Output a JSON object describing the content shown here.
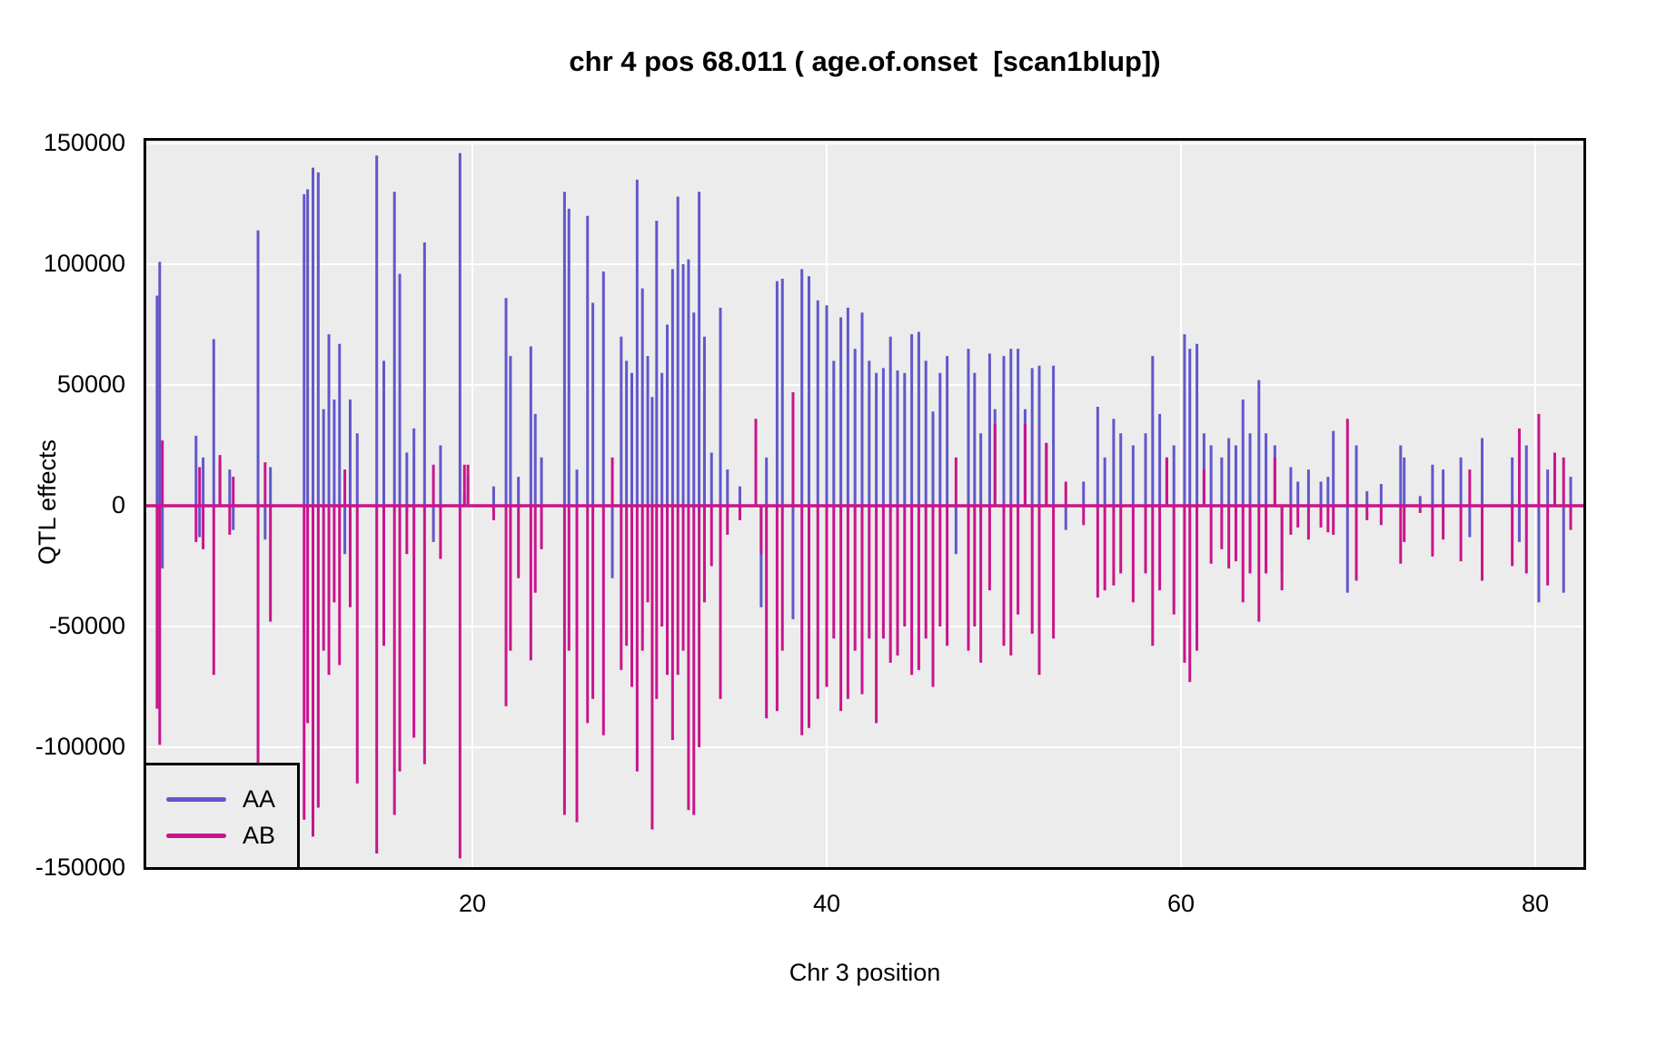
{
  "title": "chr 4 pos 68.011 ( age.of.onset  [scan1blup])",
  "panel": {
    "bg": "#ECECEC",
    "grid_color": "#FFFFFF",
    "border_color": "#000000"
  },
  "legend": {
    "position": "bottom-left",
    "entries": [
      {
        "label": "AA",
        "color": "#6257CB"
      },
      {
        "label": "AB",
        "color": "#C9148C"
      }
    ]
  },
  "chart_data": {
    "type": "line",
    "title": "chr 4 pos 68.011 ( age.of.onset  [scan1blup])",
    "xlabel": "Chr 3 position",
    "ylabel": "QTL effects",
    "xlim": [
      1.4,
      82.8
    ],
    "ylim": [
      -152000,
      151000
    ],
    "x_ticks": [
      20,
      40,
      60,
      80
    ],
    "y_ticks": [
      150000,
      100000,
      50000,
      0,
      -50000,
      -100000,
      -150000
    ],
    "grid": "white gridlines on gray panel",
    "legend_position": "bottom-left",
    "baseline": 0,
    "series": [
      {
        "name": "AA",
        "color": "#6257CB"
      },
      {
        "name": "AB",
        "color": "#C9148C"
      }
    ],
    "spikes": [
      [
        2.2,
        87000,
        -84000
      ],
      [
        2.35,
        101000,
        -99000
      ],
      [
        2.5,
        -26000,
        27000
      ],
      [
        4.4,
        29000,
        -15000
      ],
      [
        4.6,
        -13000,
        16000
      ],
      [
        4.8,
        20000,
        -18000
      ],
      [
        5.4,
        69000,
        -70000
      ],
      [
        5.75,
        18000,
        21000
      ],
      [
        6.3,
        15000,
        -12000
      ],
      [
        6.5,
        -10000,
        12000
      ],
      [
        7.9,
        114000,
        -110000
      ],
      [
        8.3,
        -14000,
        18000
      ],
      [
        8.6,
        16000,
        -48000
      ],
      [
        10.5,
        129000,
        -130000
      ],
      [
        10.7,
        131000,
        -90000
      ],
      [
        11.0,
        140000,
        -137000
      ],
      [
        11.3,
        138000,
        -125000
      ],
      [
        11.6,
        40000,
        -60000
      ],
      [
        11.9,
        71000,
        -70000
      ],
      [
        12.2,
        44000,
        -40000
      ],
      [
        12.5,
        67000,
        -66000
      ],
      [
        12.8,
        -20000,
        15000
      ],
      [
        13.1,
        44000,
        -42000
      ],
      [
        13.5,
        30000,
        -115000
      ],
      [
        14.6,
        145000,
        -144000
      ],
      [
        15.0,
        60000,
        -58000
      ],
      [
        15.6,
        130000,
        -128000
      ],
      [
        15.9,
        96000,
        -110000
      ],
      [
        16.3,
        22000,
        -20000
      ],
      [
        16.7,
        32000,
        -96000
      ],
      [
        17.3,
        109000,
        -107000
      ],
      [
        17.8,
        -15000,
        17000
      ],
      [
        18.2,
        25000,
        -22000
      ],
      [
        19.3,
        146000,
        -146000
      ],
      [
        19.55,
        5000,
        17000
      ],
      [
        19.75,
        12000,
        17000
      ],
      [
        21.2,
        8000,
        -6000
      ],
      [
        21.9,
        86000,
        -83000
      ],
      [
        22.15,
        62000,
        -60000
      ],
      [
        22.6,
        12000,
        -30000
      ],
      [
        23.3,
        66000,
        -64000
      ],
      [
        23.55,
        38000,
        -36000
      ],
      [
        23.9,
        20000,
        -18000
      ],
      [
        25.2,
        130000,
        -128000
      ],
      [
        25.45,
        123000,
        -60000
      ],
      [
        25.9,
        15000,
        -131000
      ],
      [
        26.5,
        120000,
        -90000
      ],
      [
        26.8,
        84000,
        -80000
      ],
      [
        27.4,
        97000,
        -95000
      ],
      [
        27.9,
        -30000,
        20000
      ],
      [
        28.4,
        70000,
        -68000
      ],
      [
        28.7,
        60000,
        -58000
      ],
      [
        29.0,
        55000,
        -75000
      ],
      [
        29.3,
        135000,
        -110000
      ],
      [
        29.6,
        90000,
        -60000
      ],
      [
        29.9,
        62000,
        -40000
      ],
      [
        30.15,
        45000,
        -134000
      ],
      [
        30.4,
        118000,
        -80000
      ],
      [
        30.7,
        55000,
        -50000
      ],
      [
        31.0,
        75000,
        -70000
      ],
      [
        31.3,
        98000,
        -97000
      ],
      [
        31.6,
        128000,
        -70000
      ],
      [
        31.9,
        100000,
        -60000
      ],
      [
        32.2,
        102000,
        -126000
      ],
      [
        32.5,
        80000,
        -128000
      ],
      [
        32.8,
        130000,
        -100000
      ],
      [
        33.1,
        70000,
        -40000
      ],
      [
        33.5,
        22000,
        -25000
      ],
      [
        34.0,
        82000,
        -80000
      ],
      [
        34.4,
        15000,
        -12000
      ],
      [
        35.1,
        8000,
        -6000
      ],
      [
        36.0,
        10000,
        36000
      ],
      [
        36.3,
        -42000,
        -20000
      ],
      [
        36.6,
        20000,
        -88000
      ],
      [
        37.2,
        93000,
        -85000
      ],
      [
        37.5,
        94000,
        -60000
      ],
      [
        38.1,
        -47000,
        47000
      ],
      [
        38.6,
        98000,
        -95000
      ],
      [
        39.0,
        95000,
        -92000
      ],
      [
        39.5,
        85000,
        -80000
      ],
      [
        40.0,
        83000,
        -75000
      ],
      [
        40.4,
        60000,
        -55000
      ],
      [
        40.8,
        78000,
        -85000
      ],
      [
        41.2,
        82000,
        -80000
      ],
      [
        41.6,
        65000,
        -60000
      ],
      [
        42.0,
        80000,
        -78000
      ],
      [
        42.4,
        60000,
        -55000
      ],
      [
        42.8,
        55000,
        -90000
      ],
      [
        43.2,
        57000,
        -55000
      ],
      [
        43.6,
        70000,
        -65000
      ],
      [
        44.0,
        56000,
        -62000
      ],
      [
        44.4,
        55000,
        -50000
      ],
      [
        44.8,
        71000,
        -70000
      ],
      [
        45.2,
        72000,
        -68000
      ],
      [
        45.6,
        60000,
        -55000
      ],
      [
        46.0,
        39000,
        -75000
      ],
      [
        46.4,
        55000,
        -50000
      ],
      [
        46.8,
        62000,
        -58000
      ],
      [
        47.3,
        -20000,
        20000
      ],
      [
        48.0,
        65000,
        -60000
      ],
      [
        48.35,
        55000,
        -50000
      ],
      [
        48.7,
        30000,
        -65000
      ],
      [
        49.2,
        63000,
        -35000
      ],
      [
        49.5,
        40000,
        34000
      ],
      [
        50.0,
        62000,
        -58000
      ],
      [
        50.4,
        65000,
        -62000
      ],
      [
        50.8,
        65000,
        -45000
      ],
      [
        51.2,
        40000,
        34000
      ],
      [
        51.6,
        57000,
        -53000
      ],
      [
        52.0,
        58000,
        -70000
      ],
      [
        52.4,
        26000,
        26000
      ],
      [
        52.8,
        58000,
        -55000
      ],
      [
        53.5,
        -10000,
        10000
      ],
      [
        54.5,
        10000,
        -8000
      ],
      [
        55.3,
        41000,
        -38000
      ],
      [
        55.7,
        20000,
        -35000
      ],
      [
        56.2,
        36000,
        -33000
      ],
      [
        56.6,
        30000,
        -28000
      ],
      [
        57.3,
        25000,
        -40000
      ],
      [
        58.0,
        30000,
        -28000
      ],
      [
        58.4,
        62000,
        -58000
      ],
      [
        58.8,
        38000,
        -35000
      ],
      [
        59.2,
        20000,
        20000
      ],
      [
        59.6,
        25000,
        -45000
      ],
      [
        60.2,
        71000,
        -65000
      ],
      [
        60.5,
        65000,
        -73000
      ],
      [
        60.9,
        67000,
        -60000
      ],
      [
        61.3,
        30000,
        15000
      ],
      [
        61.7,
        25000,
        -24000
      ],
      [
        62.3,
        20000,
        -18000
      ],
      [
        62.7,
        28000,
        -26000
      ],
      [
        63.1,
        25000,
        -23000
      ],
      [
        63.5,
        44000,
        -40000
      ],
      [
        63.9,
        30000,
        -28000
      ],
      [
        64.4,
        52000,
        -48000
      ],
      [
        64.8,
        30000,
        -28000
      ],
      [
        65.3,
        25000,
        20000
      ],
      [
        65.7,
        -27000,
        -35000
      ],
      [
        66.2,
        16000,
        -12000
      ],
      [
        66.6,
        10000,
        -9000
      ],
      [
        67.2,
        15000,
        -14000
      ],
      [
        67.9,
        10000,
        -9000
      ],
      [
        68.3,
        12000,
        -11000
      ],
      [
        68.6,
        31000,
        -12000
      ],
      [
        69.4,
        -36000,
        36000
      ],
      [
        69.9,
        25000,
        -31000
      ],
      [
        70.5,
        6000,
        -6000
      ],
      [
        71.3,
        9000,
        -8000
      ],
      [
        72.4,
        25000,
        -24000
      ],
      [
        72.6,
        20000,
        -15000
      ],
      [
        73.5,
        4000,
        -3000
      ],
      [
        74.2,
        17000,
        -21000
      ],
      [
        74.8,
        15000,
        -14000
      ],
      [
        75.8,
        20000,
        -23000
      ],
      [
        76.3,
        -13000,
        15000
      ],
      [
        77.0,
        28000,
        -31000
      ],
      [
        78.7,
        20000,
        -25000
      ],
      [
        79.1,
        -15000,
        32000
      ],
      [
        79.5,
        25000,
        -28000
      ],
      [
        80.2,
        -40000,
        38000
      ],
      [
        80.7,
        15000,
        -33000
      ],
      [
        81.1,
        10000,
        22000
      ],
      [
        81.6,
        -36000,
        20000
      ],
      [
        82.0,
        12000,
        -10000
      ]
    ]
  }
}
